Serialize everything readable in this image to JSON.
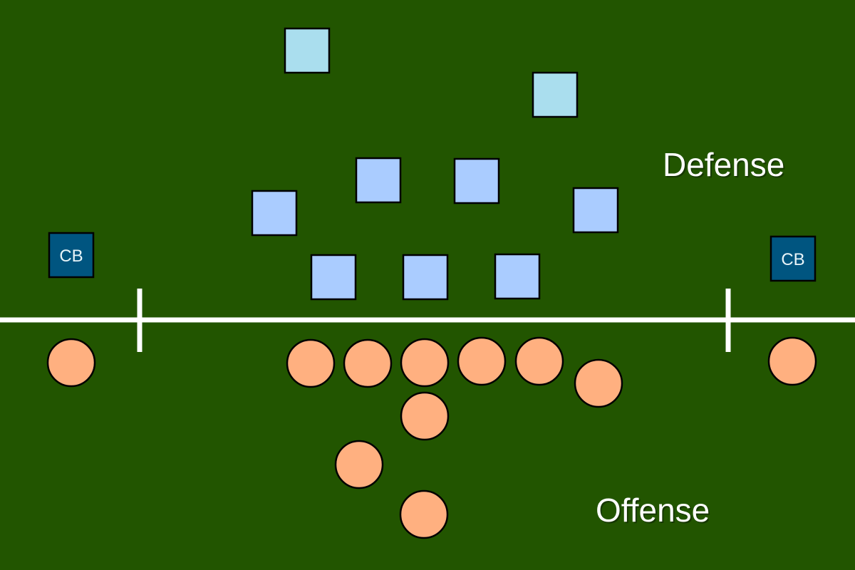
{
  "labels": {
    "defense": "Defense",
    "offense": "Offense",
    "cornerback": "CB"
  },
  "colors": {
    "field": "#225500",
    "line_markings": "#ffffff",
    "defensive_line": "#aaccff",
    "linebacker": "#aaccff",
    "safety": "#aadeee",
    "cornerback": "#005580",
    "offense": "#ffb080",
    "outline": "#000000"
  },
  "formation": {
    "defense": [
      {
        "role": "safety"
      },
      {
        "role": "safety"
      },
      {
        "role": "linebacker"
      },
      {
        "role": "linebacker"
      },
      {
        "role": "linebacker"
      },
      {
        "role": "linebacker"
      },
      {
        "role": "defensive_line"
      },
      {
        "role": "defensive_line"
      },
      {
        "role": "defensive_line"
      },
      {
        "role": "cornerback",
        "label": "CB"
      },
      {
        "role": "cornerback",
        "label": "CB"
      }
    ],
    "offense_player_count": 11
  }
}
